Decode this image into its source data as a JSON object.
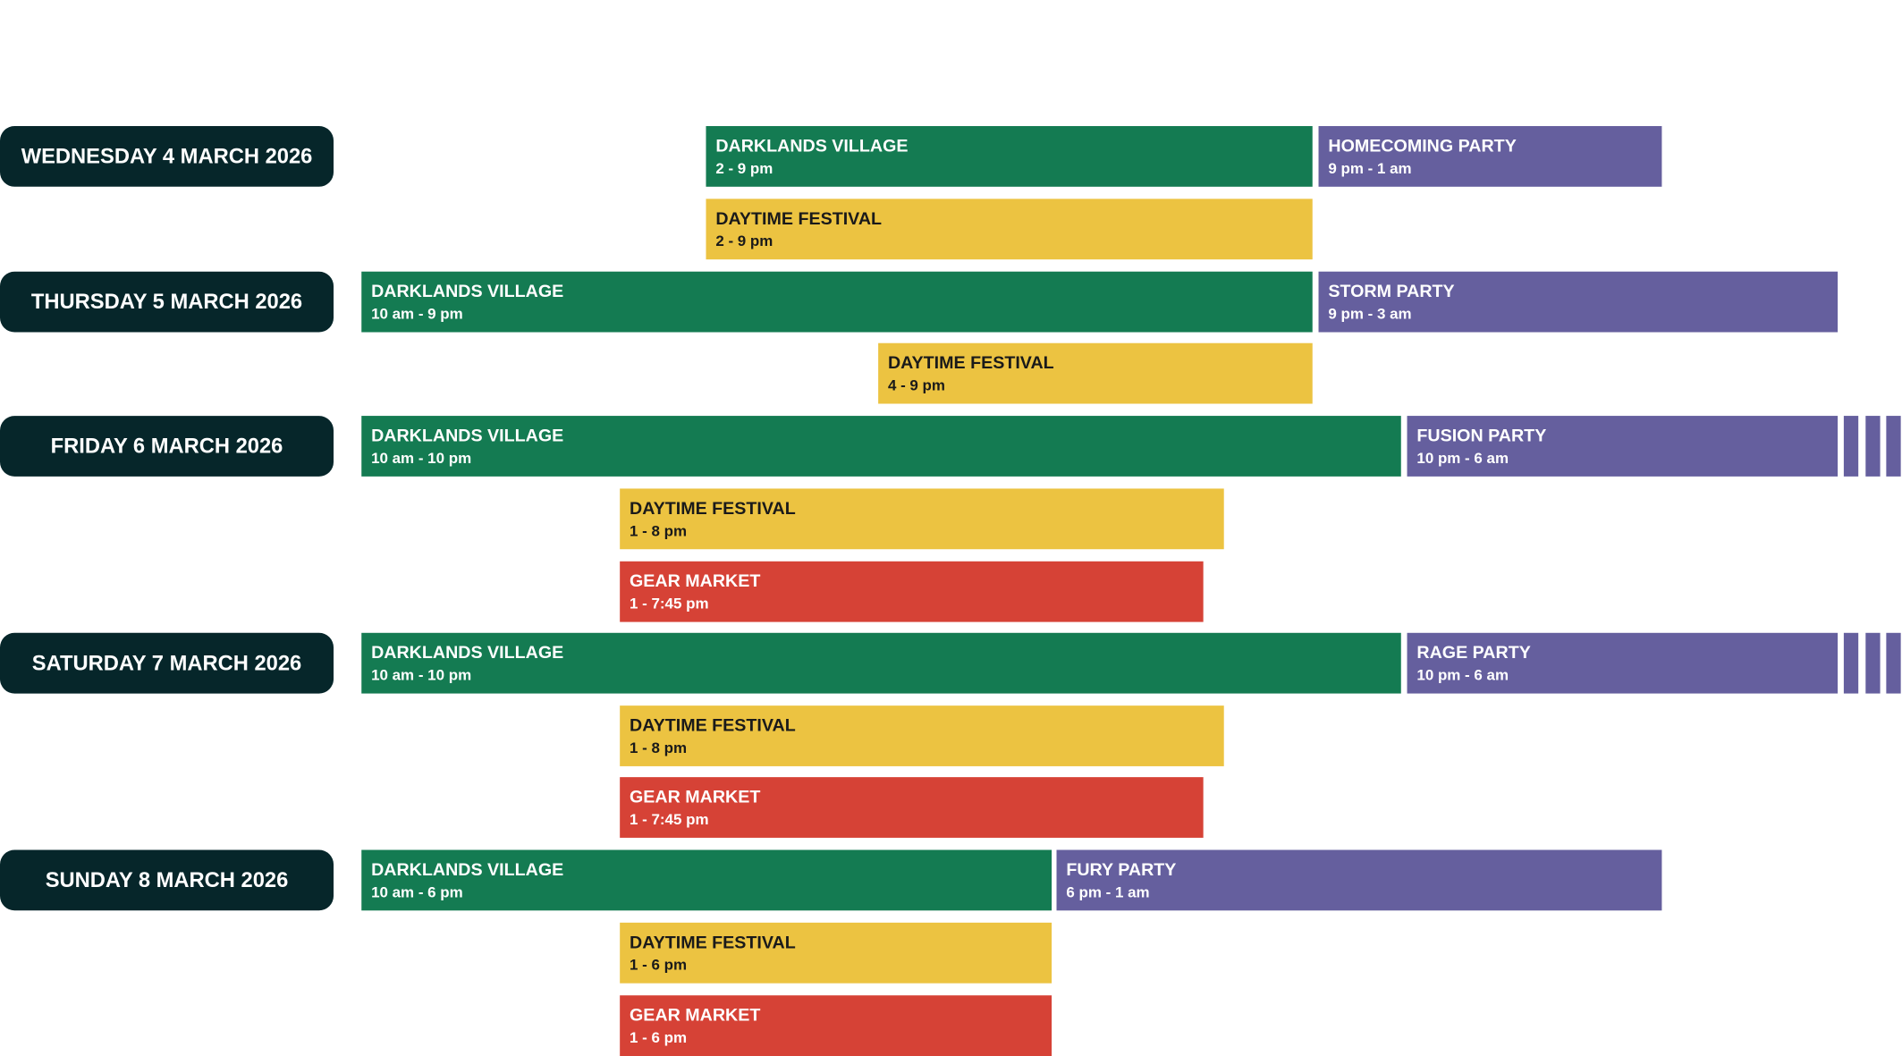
{
  "days": [
    {
      "label": "WEDNESDAY 4 MARCH 2026",
      "events": [
        {
          "name": "DARKLANDS VILLAGE",
          "time": "2 - 9 pm"
        },
        {
          "name": "HOMECOMING PARTY",
          "time": "9 pm - 1 am"
        },
        {
          "name": "DAYTIME FESTIVAL",
          "time": "2 - 9 pm"
        }
      ]
    },
    {
      "label": "THURSDAY 5 MARCH 2026",
      "events": [
        {
          "name": "DARKLANDS VILLAGE",
          "time": "10 am - 9 pm"
        },
        {
          "name": "STORM PARTY",
          "time": "9 pm - 3 am"
        },
        {
          "name": "DAYTIME FESTIVAL",
          "time": "4 - 9 pm"
        }
      ]
    },
    {
      "label": "FRIDAY 6 MARCH 2026",
      "events": [
        {
          "name": "DARKLANDS VILLAGE",
          "time": "10 am - 10 pm"
        },
        {
          "name": "FUSION PARTY",
          "time": "10 pm - 6 am"
        },
        {
          "name": "DAYTIME FESTIVAL",
          "time": "1 - 8 pm"
        },
        {
          "name": "GEAR MARKET",
          "time": "1 - 7:45 pm"
        }
      ]
    },
    {
      "label": "SATURDAY 7 MARCH 2026",
      "events": [
        {
          "name": "DARKLANDS VILLAGE",
          "time": "10 am - 10 pm"
        },
        {
          "name": "RAGE PARTY",
          "time": "10 pm - 6 am"
        },
        {
          "name": "DAYTIME FESTIVAL",
          "time": "1 - 8 pm"
        },
        {
          "name": "GEAR MARKET",
          "time": "1 - 7:45 pm"
        }
      ]
    },
    {
      "label": "SUNDAY 8 MARCH 2026",
      "events": [
        {
          "name": "DARKLANDS VILLAGE",
          "time": "10 am - 6 pm"
        },
        {
          "name": "FURY PARTY",
          "time": "6 pm - 1 am"
        },
        {
          "name": "DAYTIME FESTIVAL",
          "time": "1 - 6 pm"
        },
        {
          "name": "GEAR MARKET",
          "time": "1 - 6 pm"
        }
      ]
    }
  ]
}
